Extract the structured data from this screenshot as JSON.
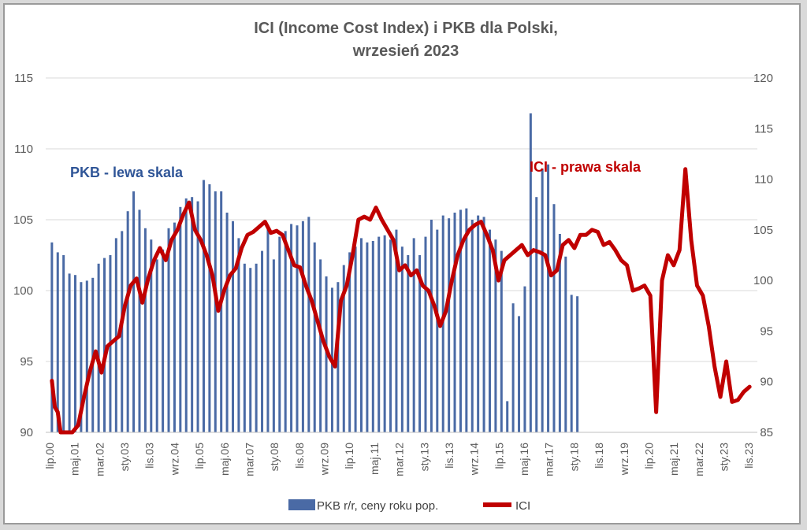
{
  "chart_data": {
    "type": "bar+line",
    "title": [
      "ICI (Income Cost Index) i PKB dla Polski,",
      "wrzesień 2023"
    ],
    "y_left": {
      "min": 90,
      "max": 115,
      "ticks": [
        90,
        95,
        100,
        105,
        110,
        115
      ]
    },
    "y_right": {
      "min": 85,
      "max": 120,
      "ticks": [
        85,
        90,
        95,
        100,
        105,
        110,
        115,
        120
      ]
    },
    "x_labels": [
      "lip.00",
      "maj.01",
      "mar.02",
      "sty.03",
      "lis.03",
      "wrz.04",
      "lip.05",
      "maj.06",
      "mar.07",
      "sty.08",
      "lis.08",
      "wrz.09",
      "lip.10",
      "maj.11",
      "mar.12",
      "sty.13",
      "lis.13",
      "wrz.14",
      "lip.15",
      "maj.16",
      "mar.17",
      "sty.18",
      "lis.18",
      "wrz.19",
      "lip.20",
      "maj.21",
      "mar.22",
      "sty.23",
      "lis.23"
    ],
    "annotations": [
      {
        "text": "PKB - lewa skala",
        "color": "#2f5597"
      },
      {
        "text": "ICI - prawa skala",
        "color": "#c00000"
      }
    ],
    "series": [
      {
        "name": "PKB  r/r, ceny roku pop.",
        "axis": "left",
        "kind": "bar",
        "color": "#4a6aa5",
        "points": [
          [
            0,
            103.4
          ],
          [
            2,
            102.7
          ],
          [
            4,
            102.5
          ],
          [
            6,
            101.2
          ],
          [
            8,
            101.1
          ],
          [
            10,
            100.6
          ],
          [
            12,
            100.7
          ],
          [
            14,
            100.9
          ],
          [
            16,
            101.9
          ],
          [
            18,
            102.3
          ],
          [
            20,
            102.5
          ],
          [
            22,
            103.7
          ],
          [
            24,
            104.2
          ],
          [
            26,
            105.6
          ],
          [
            28,
            107.0
          ],
          [
            30,
            105.7
          ],
          [
            32,
            104.4
          ],
          [
            34,
            103.6
          ],
          [
            36,
            102.2
          ],
          [
            38,
            102.9
          ],
          [
            40,
            104.4
          ],
          [
            42,
            104.8
          ],
          [
            44,
            105.9
          ],
          [
            46,
            106.5
          ],
          [
            48,
            106.6
          ],
          [
            50,
            106.3
          ],
          [
            52,
            107.8
          ],
          [
            54,
            107.5
          ],
          [
            56,
            107.0
          ],
          [
            58,
            107.0
          ],
          [
            60,
            105.5
          ],
          [
            62,
            104.9
          ],
          [
            64,
            103.7
          ],
          [
            66,
            101.9
          ],
          [
            68,
            101.6
          ],
          [
            70,
            101.9
          ],
          [
            72,
            102.8
          ],
          [
            74,
            104.6
          ],
          [
            76,
            102.2
          ],
          [
            78,
            103.8
          ],
          [
            80,
            104.2
          ],
          [
            82,
            104.7
          ],
          [
            84,
            104.6
          ],
          [
            86,
            104.9
          ],
          [
            88,
            105.2
          ],
          [
            90,
            103.4
          ],
          [
            92,
            102.2
          ],
          [
            94,
            101.0
          ],
          [
            96,
            100.2
          ],
          [
            98,
            100.6
          ],
          [
            100,
            101.8
          ],
          [
            102,
            102.7
          ],
          [
            104,
            103.1
          ],
          [
            106,
            103.7
          ],
          [
            108,
            103.4
          ],
          [
            110,
            103.5
          ],
          [
            112,
            103.8
          ],
          [
            114,
            103.9
          ],
          [
            116,
            103.6
          ],
          [
            118,
            104.3
          ],
          [
            120,
            103.1
          ],
          [
            122,
            102.5
          ],
          [
            124,
            103.7
          ],
          [
            126,
            102.5
          ],
          [
            128,
            103.8
          ],
          [
            130,
            105.0
          ],
          [
            132,
            104.3
          ],
          [
            134,
            105.3
          ],
          [
            136,
            105.1
          ],
          [
            138,
            105.5
          ],
          [
            140,
            105.7
          ],
          [
            142,
            105.8
          ],
          [
            144,
            105.0
          ],
          [
            146,
            105.3
          ],
          [
            148,
            105.2
          ],
          [
            150,
            104.3
          ],
          [
            152,
            103.6
          ],
          [
            154,
            102.8
          ],
          [
            156,
            92.2
          ],
          [
            158,
            99.1
          ],
          [
            160,
            98.2
          ],
          [
            162,
            100.3
          ],
          [
            164,
            112.5
          ],
          [
            166,
            106.6
          ],
          [
            168,
            108.6
          ],
          [
            170,
            108.9
          ],
          [
            172,
            106.1
          ],
          [
            174,
            104.0
          ],
          [
            176,
            102.4
          ],
          [
            178,
            99.7
          ],
          [
            180,
            99.6
          ]
        ]
      },
      {
        "name": "ICI",
        "axis": "right",
        "kind": "line",
        "color": "#c00000",
        "points": [
          [
            0,
            90.1
          ],
          [
            1,
            87.5
          ],
          [
            2,
            87.0
          ],
          [
            3,
            85.0
          ],
          [
            5,
            85.0
          ],
          [
            7,
            85.0
          ],
          [
            9,
            85.7
          ],
          [
            11,
            88.5
          ],
          [
            13,
            91.0
          ],
          [
            15,
            93.0
          ],
          [
            17,
            90.9
          ],
          [
            19,
            93.5
          ],
          [
            21,
            94.0
          ],
          [
            23,
            94.5
          ],
          [
            25,
            97.5
          ],
          [
            27,
            99.5
          ],
          [
            29,
            100.2
          ],
          [
            31,
            97.8
          ],
          [
            33,
            100.2
          ],
          [
            35,
            102.0
          ],
          [
            37,
            103.2
          ],
          [
            39,
            102.0
          ],
          [
            41,
            104.0
          ],
          [
            43,
            105.0
          ],
          [
            45,
            106.5
          ],
          [
            47,
            107.7
          ],
          [
            49,
            105.0
          ],
          [
            51,
            104.0
          ],
          [
            53,
            102.5
          ],
          [
            55,
            100.5
          ],
          [
            57,
            97.0
          ],
          [
            59,
            99.0
          ],
          [
            61,
            100.5
          ],
          [
            63,
            101.2
          ],
          [
            65,
            103.2
          ],
          [
            67,
            104.5
          ],
          [
            69,
            104.8
          ],
          [
            71,
            105.3
          ],
          [
            73,
            105.8
          ],
          [
            75,
            104.7
          ],
          [
            77,
            104.9
          ],
          [
            79,
            104.5
          ],
          [
            81,
            103.0
          ],
          [
            83,
            101.5
          ],
          [
            85,
            101.3
          ],
          [
            87,
            99.5
          ],
          [
            89,
            98.0
          ],
          [
            91,
            96.0
          ],
          [
            93,
            94.0
          ],
          [
            95,
            92.5
          ],
          [
            97,
            91.5
          ],
          [
            99,
            98.0
          ],
          [
            101,
            99.5
          ],
          [
            103,
            102.5
          ],
          [
            105,
            106.0
          ],
          [
            107,
            106.3
          ],
          [
            109,
            106.0
          ],
          [
            111,
            107.2
          ],
          [
            113,
            106.0
          ],
          [
            115,
            105.0
          ],
          [
            117,
            104.0
          ],
          [
            119,
            101.0
          ],
          [
            121,
            101.5
          ],
          [
            123,
            100.5
          ],
          [
            125,
            101.0
          ],
          [
            127,
            99.5
          ],
          [
            129,
            99.0
          ],
          [
            131,
            97.5
          ],
          [
            133,
            95.5
          ],
          [
            135,
            97.0
          ],
          [
            137,
            100.0
          ],
          [
            139,
            102.5
          ],
          [
            141,
            104.0
          ],
          [
            143,
            105.0
          ],
          [
            145,
            105.5
          ],
          [
            147,
            105.8
          ],
          [
            149,
            104.5
          ],
          [
            151,
            103.0
          ],
          [
            153,
            100.0
          ],
          [
            155,
            102.0
          ],
          [
            157,
            102.5
          ],
          [
            159,
            103.0
          ],
          [
            161,
            103.5
          ],
          [
            163,
            102.5
          ],
          [
            165,
            103.0
          ],
          [
            167,
            102.8
          ],
          [
            169,
            102.5
          ],
          [
            171,
            100.5
          ],
          [
            173,
            101.0
          ],
          [
            175,
            103.5
          ],
          [
            177,
            104.0
          ],
          [
            179,
            103.2
          ],
          [
            181,
            104.5
          ],
          [
            183,
            104.5
          ],
          [
            185,
            105.0
          ],
          [
            187,
            104.8
          ],
          [
            189,
            103.5
          ],
          [
            191,
            103.8
          ],
          [
            193,
            103.0
          ],
          [
            195,
            102.0
          ],
          [
            197,
            101.5
          ],
          [
            199,
            99.0
          ],
          [
            201,
            99.2
          ],
          [
            203,
            99.5
          ],
          [
            205,
            98.5
          ],
          [
            207,
            87.0
          ],
          [
            209,
            100.0
          ],
          [
            211,
            102.5
          ],
          [
            213,
            101.5
          ],
          [
            215,
            103.0
          ],
          [
            217,
            111.0
          ],
          [
            219,
            104.0
          ],
          [
            221,
            99.5
          ],
          [
            223,
            98.5
          ],
          [
            225,
            95.5
          ],
          [
            227,
            91.5
          ],
          [
            229,
            88.5
          ],
          [
            231,
            92.0
          ],
          [
            233,
            88.0
          ],
          [
            235,
            88.2
          ],
          [
            237,
            89.0
          ],
          [
            239,
            89.5
          ]
        ]
      }
    ]
  }
}
